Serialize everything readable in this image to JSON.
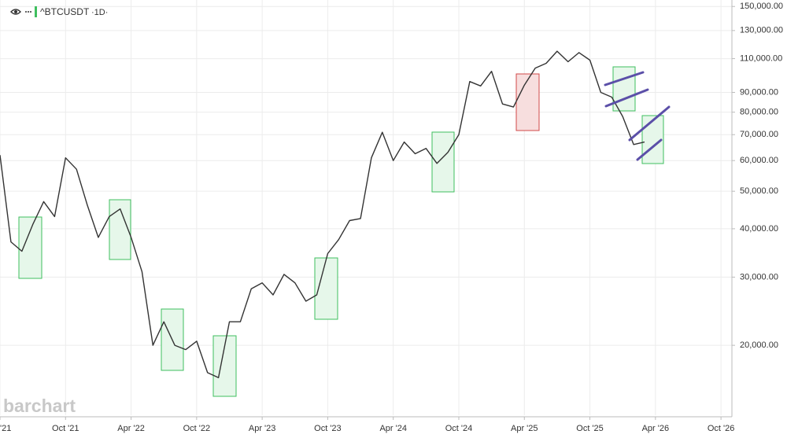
{
  "chart_data": {
    "type": "line",
    "title": "^BTCUSDT",
    "interval": "·1D·",
    "watermark": "barchart",
    "log_scale": true,
    "grid": true,
    "color": "#333333",
    "x": [
      "2021-04",
      "2021-05",
      "2021-06",
      "2021-07",
      "2021-08",
      "2021-09",
      "2021-10",
      "2021-11",
      "2021-12",
      "2022-01",
      "2022-02",
      "2022-03",
      "2022-04",
      "2022-05",
      "2022-06",
      "2022-07",
      "2022-08",
      "2022-09",
      "2022-10",
      "2022-11",
      "2022-12",
      "2023-01",
      "2023-02",
      "2023-03",
      "2023-04",
      "2023-05",
      "2023-06",
      "2023-07",
      "2023-08",
      "2023-09",
      "2023-10",
      "2023-11",
      "2023-12",
      "2024-01",
      "2024-02",
      "2024-03",
      "2024-04",
      "2024-05",
      "2024-06",
      "2024-07",
      "2024-08",
      "2024-09",
      "2024-10",
      "2024-11",
      "2024-12",
      "2025-01",
      "2025-02",
      "2025-03",
      "2025-04",
      "2025-05",
      "2025-06",
      "2025-07",
      "2025-08",
      "2025-09",
      "2025-10",
      "2025-11",
      "2025-12",
      "2026-01",
      "2026-02",
      "2026-03"
    ],
    "series": [
      {
        "name": "^BTCUSDT",
        "color": "#333333",
        "values": [
          62000,
          37000,
          35000,
          41000,
          47000,
          43000,
          61000,
          57000,
          46000,
          38000,
          43000,
          45000,
          38000,
          31000,
          20000,
          23000,
          20000,
          19500,
          20500,
          17000,
          16500,
          23000,
          23000,
          28000,
          29000,
          27000,
          30500,
          29000,
          26000,
          27000,
          34500,
          37500,
          42000,
          42500,
          61000,
          71000,
          60000,
          67000,
          62500,
          64500,
          59000,
          63000,
          70000,
          96000,
          93500,
          102000,
          84000,
          82500,
          94000,
          104000,
          107000,
          115000,
          108000,
          114000,
          109000,
          90000,
          87500,
          78000,
          66000,
          67000
        ]
      }
    ],
    "xlim": [
      "2021-04",
      "2026-11"
    ],
    "xticks": [
      {
        "value": "2021-04",
        "label": "'21"
      },
      {
        "value": "2021-10",
        "label": "Oct '21"
      },
      {
        "value": "2022-04",
        "label": "Apr '22"
      },
      {
        "value": "2022-10",
        "label": "Oct '22"
      },
      {
        "value": "2023-04",
        "label": "Apr '23"
      },
      {
        "value": "2023-10",
        "label": "Oct '23"
      },
      {
        "value": "2024-04",
        "label": "Apr '24"
      },
      {
        "value": "2024-10",
        "label": "Oct '24"
      },
      {
        "value": "2025-04",
        "label": "Apr '25"
      },
      {
        "value": "2025-10",
        "label": "Oct '25"
      },
      {
        "value": "2026-04",
        "label": "Apr '26"
      },
      {
        "value": "2026-10",
        "label": "Oct '26"
      }
    ],
    "ylim": [
      13200,
      153000
    ],
    "yticks": [
      {
        "value": 150000,
        "label": "150,000.00"
      },
      {
        "value": 130000,
        "label": "130,000.00"
      },
      {
        "value": 110000,
        "label": "110,000.00"
      },
      {
        "value": 90000,
        "label": "90,000.00"
      },
      {
        "value": 80000,
        "label": "80,000.00"
      },
      {
        "value": 70000,
        "label": "70,000.00"
      },
      {
        "value": 60000,
        "label": "60,000.00"
      },
      {
        "value": 50000,
        "label": "50,000.00"
      },
      {
        "value": 40000,
        "label": "40,000.00"
      },
      {
        "value": 30000,
        "label": "30,000.00"
      },
      {
        "value": 20000,
        "label": "20,000.00"
      }
    ]
  }
}
